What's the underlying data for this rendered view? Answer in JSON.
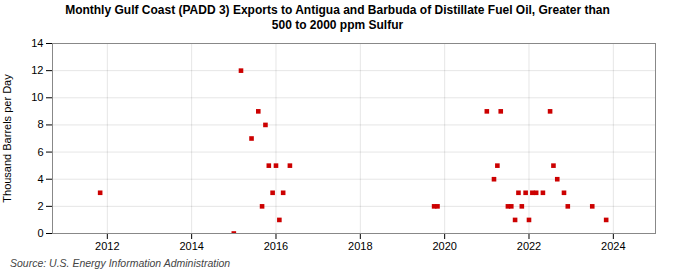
{
  "chart_data": {
    "type": "scatter",
    "title": "Monthly Gulf Coast (PADD 3) Exports to Antigua and Barbuda of Distillate Fuel Oil, Greater than\n500 to 2000 ppm Sulfur",
    "ylabel": "Thousand Barrels per Day",
    "source": "Source: U.S. Energy Information Administration",
    "x": [
      2011.83,
      2015.0,
      2015.17,
      2015.42,
      2015.58,
      2015.67,
      2015.75,
      2015.83,
      2015.92,
      2016.0,
      2016.08,
      2016.17,
      2016.33,
      2019.75,
      2019.83,
      2021.0,
      2021.17,
      2021.25,
      2021.33,
      2021.5,
      2021.58,
      2021.67,
      2021.75,
      2021.83,
      2021.92,
      2022.0,
      2022.08,
      2022.17,
      2022.33,
      2022.5,
      2022.58,
      2022.67,
      2022.83,
      2022.92,
      2023.5,
      2023.83
    ],
    "values": [
      3,
      0,
      12,
      7,
      9,
      2,
      8,
      5,
      3,
      5,
      1,
      3,
      5,
      2,
      2,
      9,
      4,
      5,
      9,
      2,
      2,
      1,
      3,
      2,
      3,
      1,
      3,
      3,
      3,
      9,
      5,
      4,
      3,
      2,
      2,
      1
    ],
    "color": "#cc0000",
    "marker": "square",
    "xlim": [
      2010.7,
      2025.0
    ],
    "xticks": [
      2012,
      2014,
      2016,
      2018,
      2020,
      2022,
      2024
    ],
    "ylim": [
      0,
      14
    ],
    "yticks": [
      0,
      2,
      4,
      6,
      8,
      10,
      12,
      14
    ],
    "grid": true
  }
}
